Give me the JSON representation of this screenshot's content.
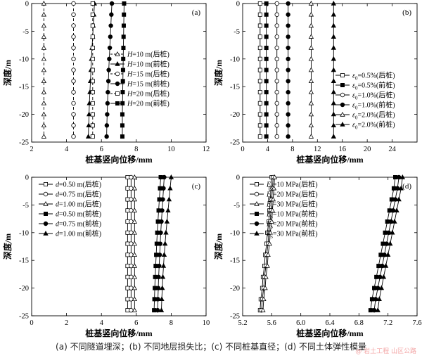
{
  "caption": "(a) 不同隧道埋深；(b) 不同地层损失比；(c) 不同桩基直径；(d) 不同土体弹性模量",
  "watermark": "@ 岩土工程  山区公路",
  "chart_data": [
    {
      "type": "line",
      "panel_label": "(a)",
      "xlabel": "桩基竖向位移/mm",
      "ylabel": "深度/m",
      "xlim": [
        2,
        12
      ],
      "ylim": [
        -25,
        0
      ],
      "xticks": [
        2,
        4,
        6,
        8,
        10,
        12
      ],
      "yticks": [
        0,
        -5,
        -10,
        -15,
        -20,
        -25
      ],
      "legend_position": "right-middle",
      "series": [
        {
          "name": "H=10 m(后桩)",
          "marker": "open-triangle",
          "dashed": true,
          "x": [
            2.7,
            2.7,
            2.7,
            2.7,
            2.7,
            2.7,
            2.7,
            2.7,
            2.7,
            2.7,
            2.7,
            2.7,
            2.7
          ],
          "y": [
            0,
            -2,
            -4,
            -6,
            -8,
            -10,
            -12,
            -14,
            -16,
            -18,
            -20,
            -22,
            -24
          ]
        },
        {
          "name": "H=10 m(前桩)",
          "marker": "filled-triangle",
          "dashed": false,
          "x": [
            5.6,
            5.57,
            5.53,
            5.5,
            5.46,
            5.43,
            5.4,
            5.37,
            5.34,
            5.31,
            5.29,
            5.27,
            5.25
          ],
          "y": [
            0,
            -2,
            -4,
            -6,
            -8,
            -10,
            -12,
            -14,
            -16,
            -18,
            -20,
            -22,
            -24
          ]
        },
        {
          "name": "H=15 m(后桩)",
          "marker": "open-circle",
          "dashed": true,
          "x": [
            4.4,
            4.4,
            4.4,
            4.4,
            4.4,
            4.4,
            4.4,
            4.4,
            4.4,
            4.4,
            4.4,
            4.4,
            4.4
          ],
          "y": [
            0,
            -2,
            -4,
            -6,
            -8,
            -10,
            -12,
            -14,
            -16,
            -18,
            -20,
            -22,
            -24
          ]
        },
        {
          "name": "H=15 m(前桩)",
          "marker": "filled-circle",
          "dashed": false,
          "x": [
            6.6,
            6.57,
            6.54,
            6.51,
            6.48,
            6.45,
            6.42,
            6.4,
            6.37,
            6.35,
            6.33,
            6.31,
            6.3
          ],
          "y": [
            0,
            -2,
            -4,
            -6,
            -8,
            -10,
            -12,
            -14,
            -16,
            -18,
            -20,
            -22,
            -24
          ]
        },
        {
          "name": "H=20 m(后桩)",
          "marker": "open-square",
          "dashed": true,
          "x": [
            5.5,
            5.5,
            5.5,
            5.5,
            5.5,
            5.5,
            5.5,
            5.5,
            5.5,
            5.5,
            5.5,
            5.5,
            5.5
          ],
          "y": [
            0,
            -2,
            -4,
            -6,
            -8,
            -10,
            -12,
            -14,
            -16,
            -18,
            -20,
            -22,
            -24
          ]
        },
        {
          "name": "H=20 m(前桩)",
          "marker": "filled-square",
          "dashed": false,
          "x": [
            7.3,
            7.29,
            7.28,
            7.27,
            7.26,
            7.25,
            7.24,
            7.23,
            7.22,
            7.21,
            7.2,
            7.2,
            7.2
          ],
          "y": [
            0,
            -2,
            -4,
            -6,
            -8,
            -10,
            -12,
            -14,
            -16,
            -18,
            -20,
            -22,
            -24
          ]
        }
      ]
    },
    {
      "type": "line",
      "panel_label": "(b)",
      "xlabel": "桩基竖向位移/mm",
      "ylabel": "深度/m",
      "xlim": [
        0,
        28
      ],
      "ylim": [
        -25,
        0
      ],
      "xticks": [
        0,
        4,
        8,
        12,
        16,
        20,
        24
      ],
      "yticks": [
        0,
        -5,
        -10,
        -15,
        -20,
        -25
      ],
      "legend_position": "right-bottom",
      "series": [
        {
          "name": "ε0=0.5%(后桩)",
          "marker": "open-square",
          "dashed": false,
          "x": [
            2.8,
            2.8,
            2.8,
            2.8,
            2.8,
            2.8,
            2.8,
            2.8,
            2.8,
            2.8,
            2.8,
            2.8,
            2.8
          ],
          "y": [
            0,
            -2,
            -4,
            -6,
            -8,
            -10,
            -12,
            -14,
            -16,
            -18,
            -20,
            -22,
            -24
          ]
        },
        {
          "name": "ε0=0.5%(前桩)",
          "marker": "filled-square",
          "dashed": false,
          "x": [
            3.8,
            3.8,
            3.8,
            3.8,
            3.8,
            3.8,
            3.8,
            3.8,
            3.8,
            3.8,
            3.8,
            3.8,
            3.8
          ],
          "y": [
            0,
            -2,
            -4,
            -6,
            -8,
            -10,
            -12,
            -14,
            -16,
            -18,
            -20,
            -22,
            -24
          ]
        },
        {
          "name": "ε0=1.0%(后桩)",
          "marker": "open-circle",
          "dashed": false,
          "x": [
            5.5,
            5.5,
            5.5,
            5.5,
            5.5,
            5.5,
            5.5,
            5.5,
            5.5,
            5.5,
            5.5,
            5.5,
            5.5
          ],
          "y": [
            0,
            -2,
            -4,
            -6,
            -8,
            -10,
            -12,
            -14,
            -16,
            -18,
            -20,
            -22,
            -24
          ]
        },
        {
          "name": "ε0=1.0%(前桩)",
          "marker": "filled-circle",
          "dashed": false,
          "x": [
            7.3,
            7.3,
            7.3,
            7.3,
            7.3,
            7.3,
            7.3,
            7.3,
            7.3,
            7.3,
            7.3,
            7.3,
            7.3
          ],
          "y": [
            0,
            -2,
            -4,
            -6,
            -8,
            -10,
            -12,
            -14,
            -16,
            -18,
            -20,
            -22,
            -24
          ]
        },
        {
          "name": "ε0=2.0%(后桩)",
          "marker": "open-triangle",
          "dashed": false,
          "x": [
            11.0,
            11.0,
            11.0,
            11.0,
            11.0,
            11.0,
            11.0,
            11.0,
            11.0,
            11.0,
            11.0,
            11.0,
            11.0
          ],
          "y": [
            0,
            -2,
            -4,
            -6,
            -8,
            -10,
            -12,
            -14,
            -16,
            -18,
            -20,
            -22,
            -24
          ]
        },
        {
          "name": "ε0=2.0%(前桩)",
          "marker": "filled-triangle",
          "dashed": false,
          "x": [
            14.6,
            14.6,
            14.6,
            14.6,
            14.6,
            14.6,
            14.6,
            14.6,
            14.6,
            14.6,
            14.6,
            14.6,
            14.6
          ],
          "y": [
            0,
            -2,
            -4,
            -6,
            -8,
            -10,
            -12,
            -14,
            -16,
            -18,
            -20,
            -22,
            -24
          ]
        }
      ]
    },
    {
      "type": "line",
      "panel_label": "(c)",
      "xlabel": "桩基竖向位移/mm",
      "ylabel": "深度/m",
      "xlim": [
        0,
        10
      ],
      "ylim": [
        -25,
        0
      ],
      "xticks": [
        0,
        2,
        4,
        6,
        8,
        10
      ],
      "yticks": [
        0,
        -5,
        -10,
        -15,
        -20,
        -25
      ],
      "legend_position": "left-top",
      "series": [
        {
          "name": "d=0.50 m(后桩)",
          "marker": "open-square",
          "dashed": false,
          "x": [
            5.5,
            5.5,
            5.5,
            5.5,
            5.5,
            5.5,
            5.5,
            5.5,
            5.5,
            5.5,
            5.5,
            5.5,
            5.5
          ],
          "y": [
            0,
            -2,
            -4,
            -6,
            -8,
            -10,
            -12,
            -14,
            -16,
            -18,
            -20,
            -22,
            -24
          ]
        },
        {
          "name": "d=0.75 m(后桩)",
          "marker": "open-circle",
          "dashed": false,
          "x": [
            5.7,
            5.7,
            5.7,
            5.7,
            5.7,
            5.7,
            5.7,
            5.7,
            5.7,
            5.7,
            5.7,
            5.7,
            5.7
          ],
          "y": [
            0,
            -2,
            -4,
            -6,
            -8,
            -10,
            -12,
            -14,
            -16,
            -18,
            -20,
            -22,
            -24
          ]
        },
        {
          "name": "d=1.00 m(后桩)",
          "marker": "open-triangle",
          "dashed": false,
          "x": [
            5.9,
            5.9,
            5.9,
            5.9,
            5.9,
            5.9,
            5.9,
            5.9,
            5.9,
            5.9,
            5.9,
            5.9,
            5.9
          ],
          "y": [
            0,
            -2,
            -4,
            -6,
            -8,
            -10,
            -12,
            -14,
            -16,
            -18,
            -20,
            -22,
            -24
          ]
        },
        {
          "name": "d=0.50 m(前桩)",
          "marker": "filled-square",
          "dashed": false,
          "x": [
            7.4,
            7.36,
            7.32,
            7.28,
            7.24,
            7.2,
            7.17,
            7.14,
            7.11,
            7.08,
            7.06,
            7.04,
            7.02
          ],
          "y": [
            0,
            -2,
            -4,
            -6,
            -8,
            -10,
            -12,
            -14,
            -16,
            -18,
            -20,
            -22,
            -24
          ]
        },
        {
          "name": "d=0.75 m(前桩)",
          "marker": "filled-circle",
          "dashed": false,
          "x": [
            7.6,
            7.56,
            7.52,
            7.48,
            7.44,
            7.4,
            7.37,
            7.34,
            7.31,
            7.28,
            7.26,
            7.24,
            7.22
          ],
          "y": [
            0,
            -2,
            -4,
            -6,
            -8,
            -10,
            -12,
            -14,
            -16,
            -18,
            -20,
            -22,
            -24
          ]
        },
        {
          "name": "d=1.00 m(前桩)",
          "marker": "filled-triangle",
          "dashed": false,
          "x": [
            8.0,
            7.94,
            7.88,
            7.82,
            7.76,
            7.7,
            7.65,
            7.6,
            7.56,
            7.52,
            7.49,
            7.46,
            7.44
          ],
          "y": [
            0,
            -2,
            -4,
            -6,
            -8,
            -10,
            -12,
            -14,
            -16,
            -18,
            -20,
            -22,
            -24
          ]
        }
      ]
    },
    {
      "type": "line",
      "panel_label": "(d)",
      "xlabel": "桩基竖向位移/mm",
      "ylabel": "深度/m",
      "xlim": [
        5.2,
        7.6
      ],
      "ylim": [
        -25,
        0
      ],
      "xticks": [
        5.2,
        5.6,
        6.0,
        6.4,
        6.8,
        7.2,
        7.6
      ],
      "yticks": [
        0,
        -5,
        -10,
        -15,
        -20,
        -25
      ],
      "legend_position": "left-top",
      "series": [
        {
          "name": "Es=10 MPa(后桩)",
          "marker": "open-square",
          "dashed": false,
          "x": [
            5.6,
            5.59,
            5.58,
            5.57,
            5.56,
            5.54,
            5.53,
            5.51,
            5.5,
            5.48,
            5.47,
            5.45,
            5.44
          ],
          "y": [
            0,
            -2,
            -4,
            -6,
            -8,
            -10,
            -12,
            -14,
            -16,
            -18,
            -20,
            -22,
            -24
          ]
        },
        {
          "name": "Es=20 MPa(后桩)",
          "marker": "open-circle",
          "dashed": false,
          "x": [
            5.62,
            5.61,
            5.6,
            5.59,
            5.58,
            5.56,
            5.55,
            5.53,
            5.52,
            5.5,
            5.49,
            5.47,
            5.46
          ],
          "y": [
            0,
            -2,
            -4,
            -6,
            -8,
            -10,
            -12,
            -14,
            -16,
            -18,
            -20,
            -22,
            -24
          ]
        },
        {
          "name": "Es=30 MPa(后桩)",
          "marker": "open-triangle",
          "dashed": false,
          "x": [
            5.64,
            5.63,
            5.62,
            5.61,
            5.6,
            5.58,
            5.57,
            5.55,
            5.54,
            5.52,
            5.51,
            5.49,
            5.48
          ],
          "y": [
            0,
            -2,
            -4,
            -6,
            -8,
            -10,
            -12,
            -14,
            -16,
            -18,
            -20,
            -22,
            -24
          ]
        },
        {
          "name": "Es=10 MPa(前桩)",
          "marker": "filled-square",
          "dashed": false,
          "x": [
            7.3,
            7.28,
            7.25,
            7.22,
            7.19,
            7.16,
            7.13,
            7.1,
            7.07,
            7.04,
            7.01,
            6.98,
            6.96
          ],
          "y": [
            0,
            -2,
            -4,
            -6,
            -8,
            -10,
            -12,
            -14,
            -16,
            -18,
            -20,
            -22,
            -24
          ]
        },
        {
          "name": "Es=20 MPa(前桩)",
          "marker": "filled-circle",
          "dashed": false,
          "x": [
            7.35,
            7.33,
            7.3,
            7.27,
            7.24,
            7.21,
            7.18,
            7.15,
            7.12,
            7.09,
            7.06,
            7.03,
            7.01
          ],
          "y": [
            0,
            -2,
            -4,
            -6,
            -8,
            -10,
            -12,
            -14,
            -16,
            -18,
            -20,
            -22,
            -24
          ]
        },
        {
          "name": "Es=30 MPa(前桩)",
          "marker": "filled-triangle",
          "dashed": false,
          "x": [
            7.4,
            7.38,
            7.35,
            7.32,
            7.29,
            7.26,
            7.23,
            7.2,
            7.17,
            7.14,
            7.11,
            7.08,
            7.06
          ],
          "y": [
            0,
            -2,
            -4,
            -6,
            -8,
            -10,
            -12,
            -14,
            -16,
            -18,
            -20,
            -22,
            -24
          ]
        }
      ]
    }
  ]
}
